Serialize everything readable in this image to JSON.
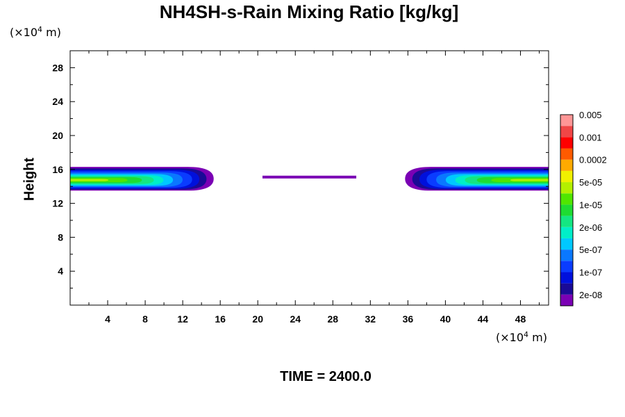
{
  "title": "NH4SH-s-Rain Mixing Ratio [kg/kg]",
  "y_unit": {
    "prefix": "(×10",
    "exp": "4",
    "suffix": " m)"
  },
  "x_unit": {
    "prefix": "(×10",
    "exp": "4",
    "suffix": " m)"
  },
  "ylabel": "Height",
  "time_label": "TIME = 2400.0",
  "chart_data": {
    "type": "heatmap",
    "title": "NH4SH-s-Rain Mixing Ratio [kg/kg]",
    "xlabel": "",
    "ylabel": "Height",
    "xlim": [
      0,
      51
    ],
    "ylim": [
      0,
      30
    ],
    "x_ticks": [
      4,
      8,
      12,
      16,
      20,
      24,
      28,
      32,
      36,
      40,
      44,
      48
    ],
    "y_ticks": [
      4,
      8,
      12,
      16,
      20,
      24,
      28
    ],
    "colorbar": {
      "colors": [
        "#7a00b4",
        "#1a0a96",
        "#0010dc",
        "#0a3cff",
        "#0a78ff",
        "#00c8ff",
        "#00eec8",
        "#14e682",
        "#1edc32",
        "#50e600",
        "#b4f000",
        "#f0f000",
        "#ffaa00",
        "#ff5a00",
        "#ff0000",
        "#f04646",
        "#ff9696"
      ],
      "labels": [
        "2e-08",
        "1e-07",
        "5e-07",
        "2e-06",
        "1e-05",
        "5e-05",
        "0.0002",
        "0.001",
        "0.005"
      ]
    },
    "layer": {
      "y_bottom": 13.5,
      "y_top": 16.3,
      "center_line_y": 15.1,
      "thin_x_range": [
        20.5,
        30.5
      ]
    }
  }
}
